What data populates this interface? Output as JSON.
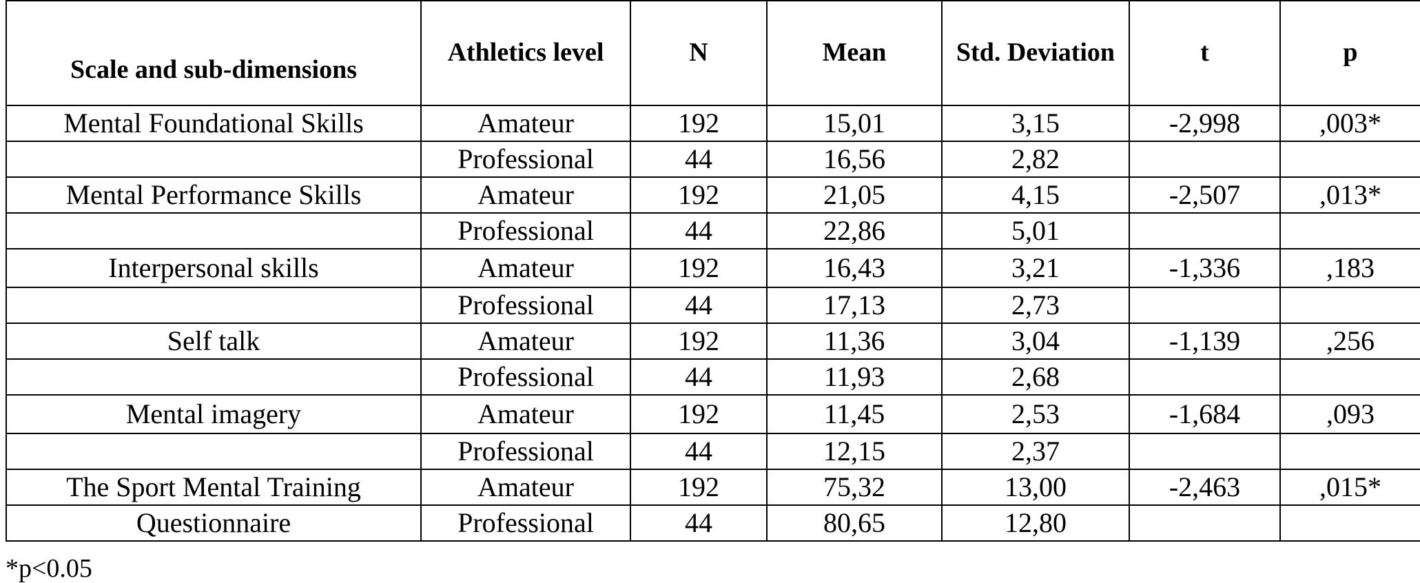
{
  "table": {
    "headers": [
      "Scale and sub-dimensions",
      "Athletics level",
      "N",
      "Mean",
      "Std. Deviation",
      "t",
      "p"
    ],
    "rows": [
      {
        "scale": "Mental Foundational Skills",
        "level": "Amateur",
        "n": "192",
        "mean": "15,01",
        "sd": "3,15",
        "t": "-2,998",
        "p": ",003*",
        "p_bold": true
      },
      {
        "scale": "",
        "level": "Professional",
        "n": "44",
        "mean": "16,56",
        "sd": "2,82",
        "t": "",
        "p": "",
        "p_bold": false
      },
      {
        "scale": "Mental Performance Skills",
        "level": "Amateur",
        "n": "192",
        "mean": "21,05",
        "sd": "4,15",
        "t": "-2,507",
        "p": ",013*",
        "p_bold": true
      },
      {
        "scale": "",
        "level": "Professional",
        "n": "44",
        "mean": "22,86",
        "sd": "5,01",
        "t": "",
        "p": "",
        "p_bold": false
      },
      {
        "scale": "Interpersonal skills",
        "level": "Amateur",
        "n": "192",
        "mean": "16,43",
        "sd": "3,21",
        "t": "-1,336",
        "p": ",183",
        "p_bold": false
      },
      {
        "scale": "",
        "level": "Professional",
        "n": "44",
        "mean": "17,13",
        "sd": "2,73",
        "t": "",
        "p": "",
        "p_bold": false
      },
      {
        "scale": "Self talk",
        "level": "Amateur",
        "n": "192",
        "mean": "11,36",
        "sd": "3,04",
        "t": "-1,139",
        "p": ",256",
        "p_bold": false
      },
      {
        "scale": "",
        "level": "Professional",
        "n": "44",
        "mean": "11,93",
        "sd": "2,68",
        "t": "",
        "p": "",
        "p_bold": false
      },
      {
        "scale": "Mental imagery",
        "level": "Amateur",
        "n": "192",
        "mean": "11,45",
        "sd": "2,53",
        "t": "-1,684",
        "p": ",093",
        "p_bold": false
      },
      {
        "scale": "",
        "level": "Professional",
        "n": "44",
        "mean": "12,15",
        "sd": "2,37",
        "t": "",
        "p": "",
        "p_bold": false
      },
      {
        "scale": "The Sport Mental Training",
        "level": "Amateur",
        "n": "192",
        "mean": "75,32",
        "sd": "13,00",
        "t": "-2,463",
        "p": ",015*",
        "p_bold": true
      },
      {
        "scale": "Questionnaire",
        "level": "Professional",
        "n": "44",
        "mean": "80,65",
        "sd": "12,80",
        "t": "",
        "p": "",
        "p_bold": false
      }
    ]
  },
  "footnote": "*p<0.05"
}
